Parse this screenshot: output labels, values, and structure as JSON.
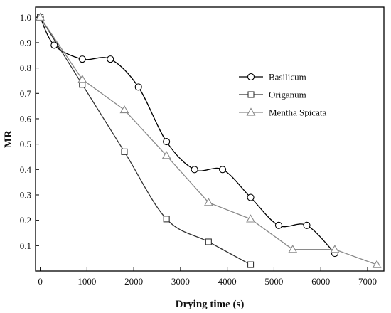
{
  "chart_data": {
    "type": "line",
    "xlabel": "Drying time (s)",
    "ylabel": "MR",
    "xlim": [
      -100,
      7350
    ],
    "ylim": [
      0.0,
      1.04
    ],
    "xticks": [
      0,
      1000,
      2000,
      3000,
      4000,
      5000,
      6000,
      7000
    ],
    "yticks": [
      0.1,
      0.2,
      0.3,
      0.4,
      0.5,
      0.6,
      0.7,
      0.8,
      0.9,
      1.0
    ],
    "xtick_labels": [
      "0",
      "1000",
      "2000",
      "3000",
      "4000",
      "5000",
      "6000",
      "7000"
    ],
    "ytick_labels": [
      "0.1",
      "0.2",
      "0.3",
      "0.4",
      "0.5",
      "0.6",
      "0.7",
      "0.8",
      "0.9",
      "1.0"
    ],
    "grid": false,
    "legend_position": "top-right",
    "series": [
      {
        "name": "Basilicum",
        "marker": "circle",
        "color": "#000000",
        "x": [
          0,
          300,
          900,
          1500,
          2100,
          2700,
          3300,
          3900,
          4500,
          5100,
          5700,
          6300
        ],
        "y": [
          1.0,
          0.89,
          0.835,
          0.835,
          0.725,
          0.51,
          0.4,
          0.4,
          0.29,
          0.18,
          0.18,
          0.07
        ]
      },
      {
        "name": "Origanum",
        "marker": "square",
        "color": "#333333",
        "x": [
          0,
          900,
          1800,
          2700,
          3600,
          4500
        ],
        "y": [
          1.0,
          0.735,
          0.47,
          0.205,
          0.115,
          0.025
        ]
      },
      {
        "name": "Mentha Spicata",
        "marker": "triangle",
        "color": "#8a8a8a",
        "x": [
          0,
          900,
          1800,
          2700,
          3600,
          4500,
          5400,
          6300,
          7200
        ],
        "y": [
          1.0,
          0.755,
          0.635,
          0.455,
          0.27,
          0.205,
          0.085,
          0.085,
          0.025
        ]
      }
    ]
  }
}
